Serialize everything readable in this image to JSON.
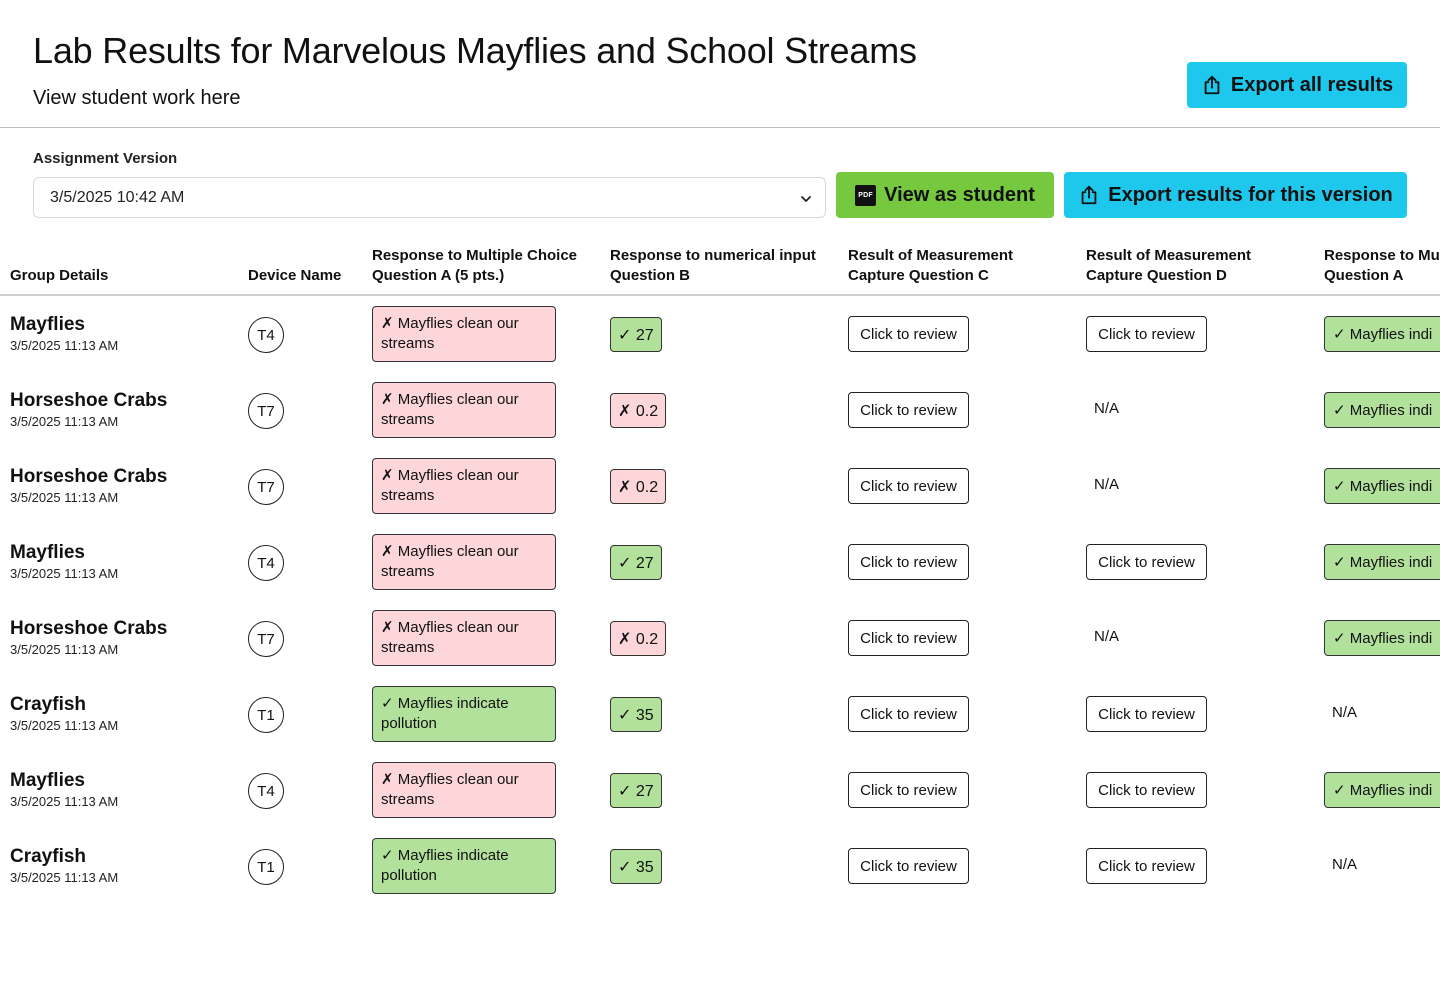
{
  "header": {
    "title": "Lab Results for Marvelous Mayflies and School Streams",
    "subtitle": "View student work here",
    "export_all_label": "Export all results"
  },
  "assignment": {
    "label": "Assignment Version",
    "selected_version": "3/5/2025 10:42 AM",
    "view_as_student_label": "View as student",
    "pdf_icon_text": "PDF",
    "export_version_label": "Export results for this version"
  },
  "table": {
    "headers": {
      "group": "Group Details",
      "device": "Device Name",
      "q_a_line1": "Response to Multiple Choice",
      "q_a_line2": "Question A (5 pts.)",
      "q_b_line1": "Response to numerical input",
      "q_b_line2": "Question B",
      "q_c_line1": "Result of Measurement",
      "q_c_line2": "Capture Question C",
      "q_d_line1": "Result of Measurement",
      "q_d_line2": "Capture Question D",
      "q_e_line1": "Response to Mu",
      "q_e_line2": "Question A"
    },
    "review_label": "Click to review",
    "na_label": "N/A",
    "rows": [
      {
        "group": "Mayflies",
        "time": "3/5/2025 11:13 AM",
        "device": "T4",
        "mc_answer": "✗ Mayflies clean our streams",
        "mc_status": "incorrect",
        "num_answer": "✓ 27",
        "num_status": "correct",
        "q_c": "Click to review",
        "q_d": "Click to review",
        "q_e": "✓ Mayflies indi"
      },
      {
        "group": "Horseshoe Crabs",
        "time": "3/5/2025 11:13 AM",
        "device": "T7",
        "mc_answer": "✗ Mayflies clean our streams",
        "mc_status": "incorrect",
        "num_answer": "✗ 0.2",
        "num_status": "incorrect",
        "q_c": "Click to review",
        "q_d": "N/A",
        "q_e": "✓ Mayflies indi"
      },
      {
        "group": "Horseshoe Crabs",
        "time": "3/5/2025 11:13 AM",
        "device": "T7",
        "mc_answer": "✗ Mayflies clean our streams",
        "mc_status": "incorrect",
        "num_answer": "✗ 0.2",
        "num_status": "incorrect",
        "q_c": "Click to review",
        "q_d": "N/A",
        "q_e": "✓ Mayflies indi"
      },
      {
        "group": "Mayflies",
        "time": "3/5/2025 11:13 AM",
        "device": "T4",
        "mc_answer": "✗ Mayflies clean our streams",
        "mc_status": "incorrect",
        "num_answer": "✓ 27",
        "num_status": "correct",
        "q_c": "Click to review",
        "q_d": "Click to review",
        "q_e": "✓ Mayflies indi"
      },
      {
        "group": "Horseshoe Crabs",
        "time": "3/5/2025 11:13 AM",
        "device": "T7",
        "mc_answer": "✗ Mayflies clean our streams",
        "mc_status": "incorrect",
        "num_answer": "✗ 0.2",
        "num_status": "incorrect",
        "q_c": "Click to review",
        "q_d": "N/A",
        "q_e": "✓ Mayflies indi"
      },
      {
        "group": "Crayfish",
        "time": "3/5/2025 11:13 AM",
        "device": "T1",
        "mc_answer": "✓ Mayflies indicate pollution",
        "mc_status": "correct",
        "num_answer": "✓ 35",
        "num_status": "correct",
        "q_c": "Click to review",
        "q_d": "Click to review",
        "q_e": "N/A"
      },
      {
        "group": "Mayflies",
        "time": "3/5/2025 11:13 AM",
        "device": "T4",
        "mc_answer": "✗ Mayflies clean our streams",
        "mc_status": "incorrect",
        "num_answer": "✓ 27",
        "num_status": "correct",
        "q_c": "Click to review",
        "q_d": "Click to review",
        "q_e": "✓ Mayflies indi"
      },
      {
        "group": "Crayfish",
        "time": "3/5/2025 11:13 AM",
        "device": "T1",
        "mc_answer": "✓ Mayflies indicate pollution",
        "mc_status": "correct",
        "num_answer": "✓ 35",
        "num_status": "correct",
        "q_c": "Click to review",
        "q_d": "Click to review",
        "q_e": "N/A"
      }
    ]
  },
  "colors": {
    "cyan_button": "#1ec8ec",
    "green_button": "#76c93e",
    "incorrect_bg": "#fcd6d8",
    "correct_bg": "#b2e19c"
  },
  "icons": {
    "export_all": "share-upload-icon",
    "view_student": "pdf-icon",
    "export_version": "share-upload-icon",
    "version_select": "chevron-down-icon"
  }
}
